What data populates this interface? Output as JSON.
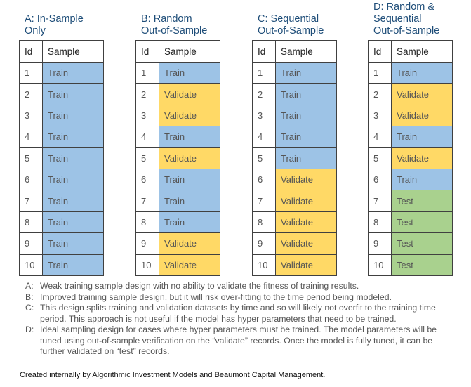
{
  "tables": [
    {
      "title": [
        "A: In-Sample",
        "Only"
      ],
      "header": [
        "Id",
        "Sample"
      ],
      "rows": [
        [
          "1",
          "Train"
        ],
        [
          "2",
          "Train"
        ],
        [
          "3",
          "Train"
        ],
        [
          "4",
          "Train"
        ],
        [
          "5",
          "Train"
        ],
        [
          "6",
          "Train"
        ],
        [
          "7",
          "Train"
        ],
        [
          "8",
          "Train"
        ],
        [
          "9",
          "Train"
        ],
        [
          "10",
          "Train"
        ]
      ]
    },
    {
      "title": [
        "B: Random",
        "Out-of-Sample"
      ],
      "header": [
        "Id",
        "Sample"
      ],
      "rows": [
        [
          "1",
          "Train"
        ],
        [
          "2",
          "Validate"
        ],
        [
          "3",
          "Validate"
        ],
        [
          "4",
          "Train"
        ],
        [
          "5",
          "Validate"
        ],
        [
          "6",
          "Train"
        ],
        [
          "7",
          "Train"
        ],
        [
          "8",
          "Train"
        ],
        [
          "9",
          "Validate"
        ],
        [
          "10",
          "Validate"
        ]
      ]
    },
    {
      "title": [
        "C: Sequential",
        "Out-of-Sample"
      ],
      "header": [
        "Id",
        "Sample"
      ],
      "rows": [
        [
          "1",
          "Train"
        ],
        [
          "2",
          "Train"
        ],
        [
          "3",
          "Train"
        ],
        [
          "4",
          "Train"
        ],
        [
          "5",
          "Train"
        ],
        [
          "6",
          "Validate"
        ],
        [
          "7",
          "Validate"
        ],
        [
          "8",
          "Validate"
        ],
        [
          "9",
          "Validate"
        ],
        [
          "10",
          "Validate"
        ]
      ]
    },
    {
      "title": [
        "D: Random &",
        "Sequential",
        "Out-of-Sample"
      ],
      "header": [
        "Id",
        "Sample"
      ],
      "rows": [
        [
          "1",
          "Train"
        ],
        [
          "2",
          "Validate"
        ],
        [
          "3",
          "Validate"
        ],
        [
          "4",
          "Train"
        ],
        [
          "5",
          "Validate"
        ],
        [
          "6",
          "Train"
        ],
        [
          "7",
          "Test"
        ],
        [
          "8",
          "Test"
        ],
        [
          "9",
          "Test"
        ],
        [
          "10",
          "Test"
        ]
      ]
    }
  ],
  "sample_colors": {
    "Train": "#9dc3e6",
    "Validate": "#ffd966",
    "Test": "#a9d18e"
  },
  "notes": [
    {
      "label": "A:",
      "text": "Weak training sample design with no ability to validate the fitness of training results."
    },
    {
      "label": "B:",
      "text": "Improved training sample design, but it will risk over-fitting to the time period being modeled."
    },
    {
      "label": "C:",
      "text": "This design splits training and validation datasets by time and so will likely not overfit to the training time period. This approach is not useful if the model has hyper parameters that need to be trained."
    },
    {
      "label": "D:",
      "text": "Ideal sampling design for cases where hyper parameters must be trained. The model parameters will be tuned using out-of-sample verification on the “validate” records. Once the model is fully tuned, it can be further validated on “test” records."
    }
  ],
  "footer": "Created internally by Algorithmic Investment Models and Beaumont Capital Management."
}
